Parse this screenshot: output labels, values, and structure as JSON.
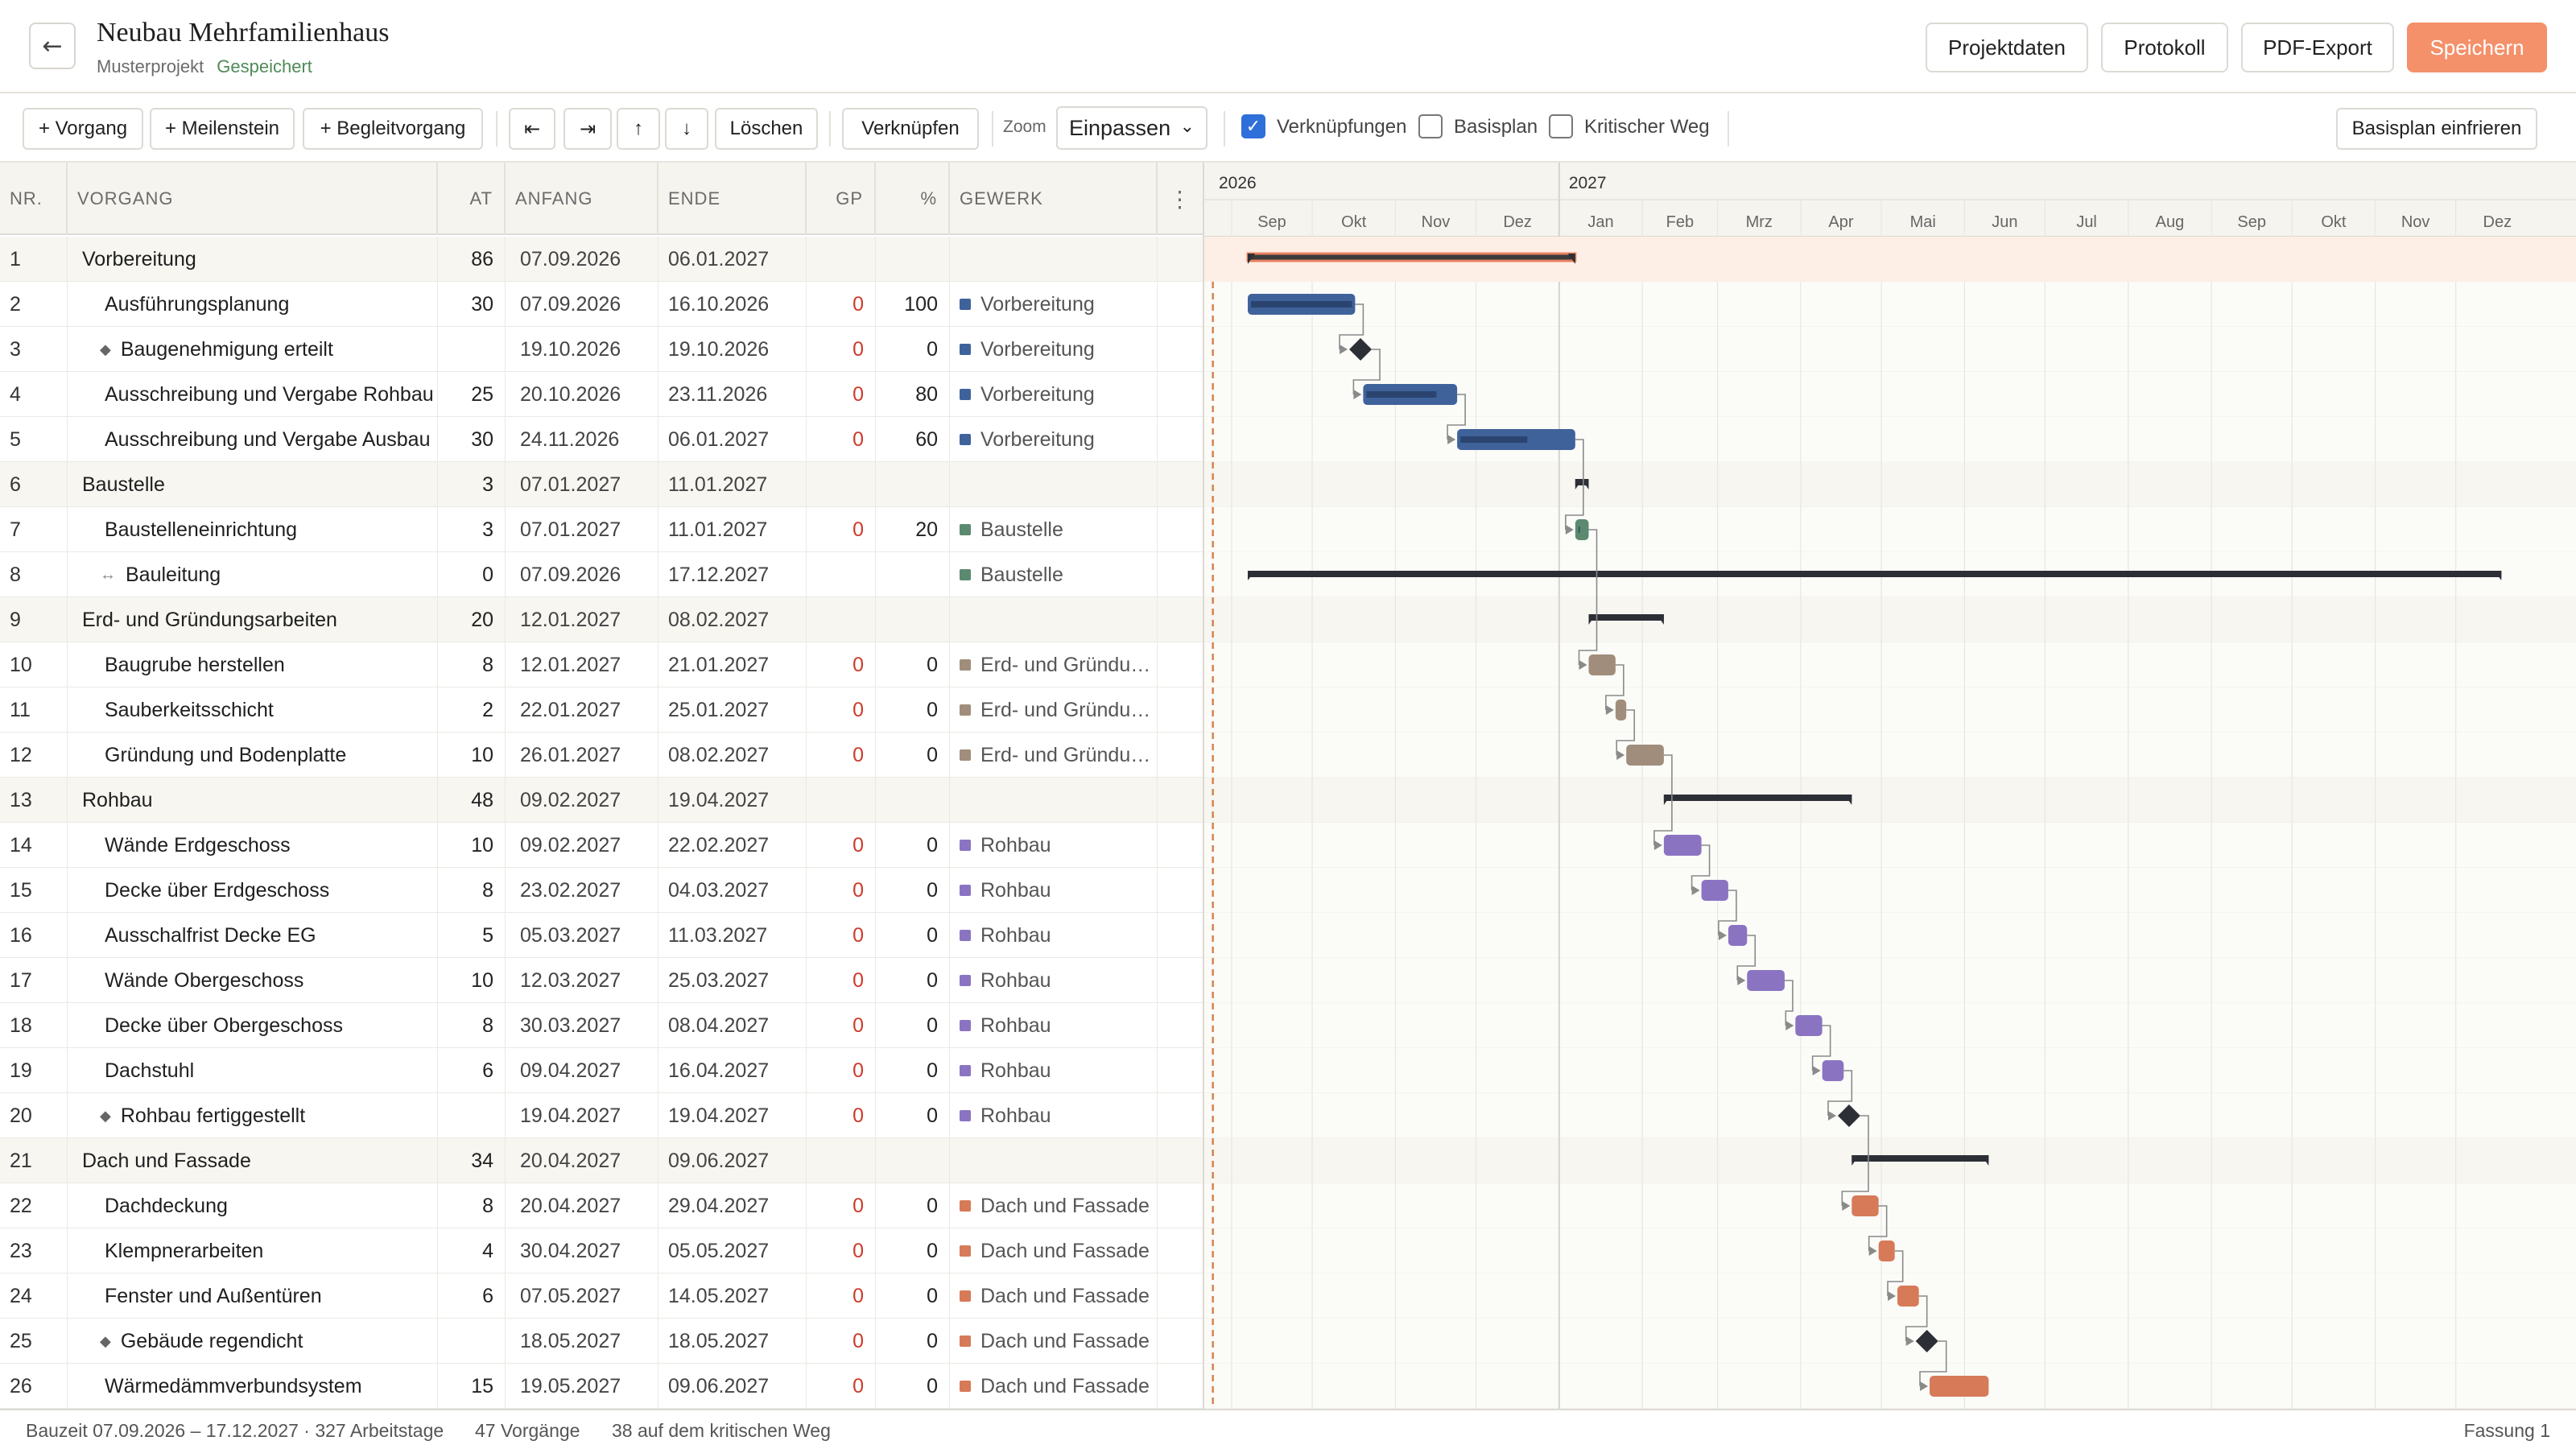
{
  "header": {
    "back_glyph": "←",
    "title": "Neubau Mehrfamilienhaus",
    "subtitle": "Musterprojekt",
    "status": "Gespeichert",
    "buttons": {
      "projektdaten": "Projektdaten",
      "protokoll": "Protokoll",
      "pdf_export": "PDF-Export",
      "speichern": "Speichern"
    }
  },
  "toolbar": {
    "add_vorgang": "+ Vorgang",
    "add_meilenstein": "+ Meilenstein",
    "add_begleitvorgang": "+ Begleitvorgang",
    "outdent": "⇤",
    "indent": "⇥",
    "up": "↑",
    "down": "↓",
    "loeschen": "Löschen",
    "verknuepfen": "Verknüpfen",
    "zoom_label": "Zoom",
    "zoom_value": "Einpassen",
    "checkboxes": [
      {
        "label": "Verknüpfungen",
        "checked": true
      },
      {
        "label": "Basisplan",
        "checked": false
      },
      {
        "label": "Kritischer Weg",
        "checked": false
      }
    ],
    "basisplan_einfrieren": "Basisplan einfrieren"
  },
  "columns": {
    "nr": "NR.",
    "vorgang": "VORGANG",
    "at": "AT",
    "anfang": "ANFANG",
    "ende": "ENDE",
    "gp": "GP",
    "pct": "%",
    "gewerk": "GEWERK",
    "menu_glyph": "⋮"
  },
  "gewerk_colors": {
    "Vorbereitung": "#3f629b",
    "Baustelle": "#5b8a70",
    "Erd- und Gründungsarbeiten": "#a08d7b",
    "Rohbau": "#8a74c2",
    "Dach und Fassade": "#d67a58"
  },
  "rows": [
    {
      "nr": "1",
      "name": "Vorbereitung",
      "level": 0,
      "type": "summary",
      "at": "86",
      "anfang": "07.09.2026",
      "ende": "06.01.2027",
      "gp": "",
      "pct": "",
      "gewerk": ""
    },
    {
      "nr": "2",
      "name": "Ausführungsplanung",
      "level": 1,
      "type": "task",
      "at": "30",
      "anfang": "07.09.2026",
      "ende": "16.10.2026",
      "gp": "0",
      "pct": "100",
      "gewerk": "Vorbereitung"
    },
    {
      "nr": "3",
      "name": "Baugenehmigung erteilt",
      "level": 1,
      "type": "milestone",
      "at": "",
      "anfang": "19.10.2026",
      "ende": "19.10.2026",
      "gp": "0",
      "pct": "0",
      "gewerk": "Vorbereitung"
    },
    {
      "nr": "4",
      "name": "Ausschreibung und Vergabe Rohbau",
      "level": 1,
      "type": "task",
      "at": "25",
      "anfang": "20.10.2026",
      "ende": "23.11.2026",
      "gp": "0",
      "pct": "80",
      "gewerk": "Vorbereitung"
    },
    {
      "nr": "5",
      "name": "Ausschreibung und Vergabe Ausbau",
      "level": 1,
      "type": "task",
      "at": "30",
      "anfang": "24.11.2026",
      "ende": "06.01.2027",
      "gp": "0",
      "pct": "60",
      "gewerk": "Vorbereitung"
    },
    {
      "nr": "6",
      "name": "Baustelle",
      "level": 0,
      "type": "summary",
      "at": "3",
      "anfang": "07.01.2027",
      "ende": "11.01.2027",
      "gp": "",
      "pct": "",
      "gewerk": ""
    },
    {
      "nr": "7",
      "name": "Baustelleneinrichtung",
      "level": 1,
      "type": "task",
      "at": "3",
      "anfang": "07.01.2027",
      "ende": "11.01.2027",
      "gp": "0",
      "pct": "20",
      "gewerk": "Baustelle"
    },
    {
      "nr": "8",
      "name": "Bauleitung",
      "level": 1,
      "type": "hammock",
      "at": "0",
      "anfang": "07.09.2026",
      "ende": "17.12.2027",
      "gp": "",
      "pct": "",
      "gewerk": "Baustelle"
    },
    {
      "nr": "9",
      "name": "Erd- und Gründungsarbeiten",
      "level": 0,
      "type": "summary",
      "at": "20",
      "anfang": "12.01.2027",
      "ende": "08.02.2027",
      "gp": "",
      "pct": "",
      "gewerk": ""
    },
    {
      "nr": "10",
      "name": "Baugrube herstellen",
      "level": 1,
      "type": "task",
      "at": "8",
      "anfang": "12.01.2027",
      "ende": "21.01.2027",
      "gp": "0",
      "pct": "0",
      "gewerk": "Erd- und Gründungsarbeiten"
    },
    {
      "nr": "11",
      "name": "Sauberkeitsschicht",
      "level": 1,
      "type": "task",
      "at": "2",
      "anfang": "22.01.2027",
      "ende": "25.01.2027",
      "gp": "0",
      "pct": "0",
      "gewerk": "Erd- und Gründungsarbeiten"
    },
    {
      "nr": "12",
      "name": "Gründung und Bodenplatte",
      "level": 1,
      "type": "task",
      "at": "10",
      "anfang": "26.01.2027",
      "ende": "08.02.2027",
      "gp": "0",
      "pct": "0",
      "gewerk": "Erd- und Gründungsarbeiten"
    },
    {
      "nr": "13",
      "name": "Rohbau",
      "level": 0,
      "type": "summary",
      "at": "48",
      "anfang": "09.02.2027",
      "ende": "19.04.2027",
      "gp": "",
      "pct": "",
      "gewerk": ""
    },
    {
      "nr": "14",
      "name": "Wände Erdgeschoss",
      "level": 1,
      "type": "task",
      "at": "10",
      "anfang": "09.02.2027",
      "ende": "22.02.2027",
      "gp": "0",
      "pct": "0",
      "gewerk": "Rohbau"
    },
    {
      "nr": "15",
      "name": "Decke über Erdgeschoss",
      "level": 1,
      "type": "task",
      "at": "8",
      "anfang": "23.02.2027",
      "ende": "04.03.2027",
      "gp": "0",
      "pct": "0",
      "gewerk": "Rohbau"
    },
    {
      "nr": "16",
      "name": "Ausschalfrist Decke EG",
      "level": 1,
      "type": "task",
      "at": "5",
      "anfang": "05.03.2027",
      "ende": "11.03.2027",
      "gp": "0",
      "pct": "0",
      "gewerk": "Rohbau"
    },
    {
      "nr": "17",
      "name": "Wände Obergeschoss",
      "level": 1,
      "type": "task",
      "at": "10",
      "anfang": "12.03.2027",
      "ende": "25.03.2027",
      "gp": "0",
      "pct": "0",
      "gewerk": "Rohbau"
    },
    {
      "nr": "18",
      "name": "Decke über Obergeschoss",
      "level": 1,
      "type": "task",
      "at": "8",
      "anfang": "30.03.2027",
      "ende": "08.04.2027",
      "gp": "0",
      "pct": "0",
      "gewerk": "Rohbau"
    },
    {
      "nr": "19",
      "name": "Dachstuhl",
      "level": 1,
      "type": "task",
      "at": "6",
      "anfang": "09.04.2027",
      "ende": "16.04.2027",
      "gp": "0",
      "pct": "0",
      "gewerk": "Rohbau"
    },
    {
      "nr": "20",
      "name": "Rohbau fertiggestellt",
      "level": 1,
      "type": "milestone",
      "at": "",
      "anfang": "19.04.2027",
      "ende": "19.04.2027",
      "gp": "0",
      "pct": "0",
      "gewerk": "Rohbau"
    },
    {
      "nr": "21",
      "name": "Dach und Fassade",
      "level": 0,
      "type": "summary",
      "at": "34",
      "anfang": "20.04.2027",
      "ende": "09.06.2027",
      "gp": "",
      "pct": "",
      "gewerk": ""
    },
    {
      "nr": "22",
      "name": "Dachdeckung",
      "level": 1,
      "type": "task",
      "at": "8",
      "anfang": "20.04.2027",
      "ende": "29.04.2027",
      "gp": "0",
      "pct": "0",
      "gewerk": "Dach und Fassade"
    },
    {
      "nr": "23",
      "name": "Klempnerarbeiten",
      "level": 1,
      "type": "task",
      "at": "4",
      "anfang": "30.04.2027",
      "ende": "05.05.2027",
      "gp": "0",
      "pct": "0",
      "gewerk": "Dach und Fassade"
    },
    {
      "nr": "24",
      "name": "Fenster und Außentüren",
      "level": 1,
      "type": "task",
      "at": "6",
      "anfang": "07.05.2027",
      "ende": "14.05.2027",
      "gp": "0",
      "pct": "0",
      "gewerk": "Dach und Fassade"
    },
    {
      "nr": "25",
      "name": "Gebäude regendicht",
      "level": 1,
      "type": "milestone",
      "at": "",
      "anfang": "18.05.2027",
      "ende": "18.05.2027",
      "gp": "0",
      "pct": "0",
      "gewerk": "Dach und Fassade"
    },
    {
      "nr": "26",
      "name": "Wärmedämmverbundsystem",
      "level": 1,
      "type": "task",
      "at": "15",
      "anfang": "19.05.2027",
      "ende": "09.06.2027",
      "gp": "0",
      "pct": "0",
      "gewerk": "Dach und Fassade"
    }
  ],
  "timeline": {
    "years": [
      "2026",
      "2027"
    ],
    "months": [
      "Sep",
      "Okt",
      "Nov",
      "Dez",
      "Jan",
      "Feb",
      "Mrz",
      "Apr",
      "Mai",
      "Jun",
      "Jul",
      "Aug",
      "Sep",
      "Okt",
      "Nov",
      "Dez"
    ],
    "range_start": "2026-09-01",
    "range_end": "2027-12-31",
    "today": "2026-08-25"
  },
  "footer": {
    "bauzeit": "Bauzeit 07.09.2026 – 17.12.2027 · 327 Arbeitstage",
    "vorgaenge": "47 Vorgänge",
    "kritisch": "38 auf dem kritischen Weg",
    "fassung": "Fassung 1"
  }
}
